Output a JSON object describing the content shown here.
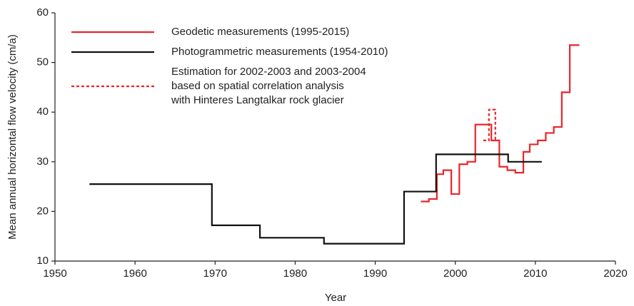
{
  "chart_data": {
    "type": "step",
    "xlabel": "Year",
    "ylabel": "Mean annual horizontal flow velocity (cm/a)",
    "xlim": [
      1950,
      2020
    ],
    "ylim": [
      10,
      60
    ],
    "xticks": [
      1950,
      1960,
      1970,
      1980,
      1990,
      2000,
      2010,
      2020
    ],
    "yticks": [
      10,
      20,
      30,
      40,
      50,
      60
    ],
    "legend": "upper left",
    "series": [
      {
        "name": [
          "Geodetic measurements (1995-2015)"
        ],
        "color": "#e8262b",
        "dash": false,
        "x": [
          1995.7,
          1996.7,
          1997.7,
          1998.5,
          1999.5,
          2000.5,
          2001.5,
          2002.5,
          2004.5,
          2005.5,
          2006.5,
          2007.5,
          2008.5,
          2009.3,
          2010.3,
          2011.3,
          2012.3,
          2013.3,
          2014.3,
          2015.5
        ],
        "values": [
          22,
          22.5,
          27.5,
          28.3,
          23.5,
          29.5,
          30,
          37.5,
          34.3,
          29,
          28.3,
          27.8,
          32,
          33.5,
          34.3,
          35.8,
          37,
          44,
          53.5,
          53.5
        ]
      },
      {
        "name": [
          "Photogrammetric measurements (1954-2010)"
        ],
        "color": "#111111",
        "dash": false,
        "x": [
          1954.3,
          1969.6,
          1975.6,
          1983.6,
          1993.6,
          1997.6,
          2006.6,
          2010.8
        ],
        "values": [
          25.5,
          17.2,
          14.7,
          13.5,
          24,
          31.5,
          30,
          30
        ]
      },
      {
        "name": [
          "Estimation for 2002-2003 and 2003-2004",
          "based on spatial correlation analysis",
          "with Hinteres Langtalkar rock glacier"
        ],
        "color": "#e8262b",
        "dash": true,
        "x": [
          2003.5,
          2004.2,
          2005.0
        ],
        "values": [
          34.3,
          40.5,
          34.3
        ]
      }
    ]
  }
}
